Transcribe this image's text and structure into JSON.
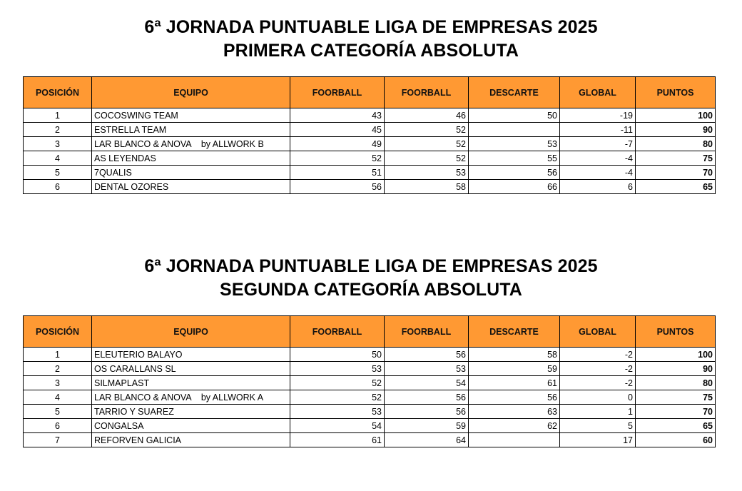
{
  "headers": [
    "POSICIÓN",
    "EQUIPO",
    "FOORBALL",
    "FOORBALL",
    "DESCARTE",
    "GLOBAL",
    "PUNTOS"
  ],
  "sections": [
    {
      "title_line1": "6ª JORNADA PUNTUABLE LIGA DE EMPRESAS 2025",
      "title_line2": "PRIMERA CATEGORÍA ABSOLUTA",
      "rows": [
        {
          "pos": "1",
          "team": "COCOSWING TEAM",
          "f1": "43",
          "f2": "46",
          "desc": "50",
          "global": "-19",
          "pts": "100"
        },
        {
          "pos": "2",
          "team": "ESTRELLA TEAM",
          "f1": "45",
          "f2": "52",
          "desc": "",
          "global": "-11",
          "pts": "90"
        },
        {
          "pos": "3",
          "team": "LAR BLANCO & ANOVA    by ALLWORK B",
          "f1": "49",
          "f2": "52",
          "desc": "53",
          "global": "-7",
          "pts": "80"
        },
        {
          "pos": "4",
          "team": "AS LEYENDAS",
          "f1": "52",
          "f2": "52",
          "desc": "55",
          "global": "-4",
          "pts": "75"
        },
        {
          "pos": "5",
          "team": "7QUALIS",
          "f1": "51",
          "f2": "53",
          "desc": "56",
          "global": "-4",
          "pts": "70"
        },
        {
          "pos": "6",
          "team": "DENTAL OZORES",
          "f1": "56",
          "f2": "58",
          "desc": "66",
          "global": "6",
          "pts": "65"
        }
      ]
    },
    {
      "title_line1": "6ª JORNADA PUNTUABLE LIGA DE EMPRESAS 2025",
      "title_line2": "SEGUNDA CATEGORÍA ABSOLUTA",
      "rows": [
        {
          "pos": "1",
          "team": "ELEUTERIO BALAYO",
          "f1": "50",
          "f2": "56",
          "desc": "58",
          "global": "-2",
          "pts": "100"
        },
        {
          "pos": "2",
          "team": "OS CARALLANS SL",
          "f1": "53",
          "f2": "53",
          "desc": "59",
          "global": "-2",
          "pts": "90"
        },
        {
          "pos": "3",
          "team": "SILMAPLAST",
          "f1": "52",
          "f2": "54",
          "desc": "61",
          "global": "-2",
          "pts": "80"
        },
        {
          "pos": "4",
          "team": "LAR BLANCO & ANOVA    by ALLWORK A",
          "f1": "52",
          "f2": "56",
          "desc": "56",
          "global": "0",
          "pts": "75"
        },
        {
          "pos": "5",
          "team": "TARRIO Y SUAREZ",
          "f1": "53",
          "f2": "56",
          "desc": "63",
          "global": "1",
          "pts": "70"
        },
        {
          "pos": "6",
          "team": "CONGALSA",
          "f1": "54",
          "f2": "59",
          "desc": "62",
          "global": "5",
          "pts": "65"
        },
        {
          "pos": "7",
          "team": "REFORVEN GALICIA",
          "f1": "61",
          "f2": "64",
          "desc": "",
          "global": "17",
          "pts": "60"
        }
      ]
    }
  ],
  "colors": {
    "header_bg": "#ff9933",
    "border": "#000000"
  }
}
